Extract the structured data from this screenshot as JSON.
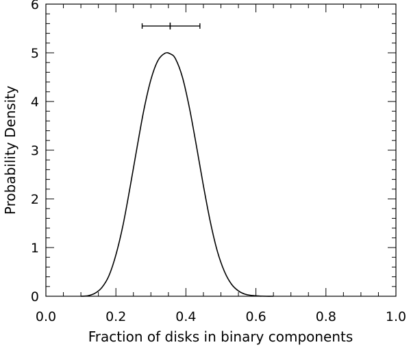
{
  "chart_data": {
    "type": "line",
    "title": "",
    "xlabel": "Fraction of disks in binary components",
    "ylabel": "Probability Density",
    "xlim": [
      0.0,
      1.0
    ],
    "ylim": [
      0,
      6
    ],
    "xticks": [
      "0.0",
      "0.2",
      "0.4",
      "0.6",
      "0.8",
      "1.0"
    ],
    "yticks": [
      "0",
      "1",
      "2",
      "3",
      "4",
      "5",
      "6"
    ],
    "x_minor_step": 0.05,
    "y_minor_step": 0.2,
    "grid": false,
    "series": [
      {
        "x": [
          0.1,
          0.12,
          0.14,
          0.16,
          0.18,
          0.2,
          0.22,
          0.24,
          0.26,
          0.28,
          0.3,
          0.32,
          0.34,
          0.355,
          0.37,
          0.39,
          0.41,
          0.43,
          0.45,
          0.47,
          0.49,
          0.51,
          0.53,
          0.55,
          0.57,
          0.59,
          0.61,
          0.63,
          0.65
        ],
        "y": [
          0.0,
          0.01,
          0.06,
          0.18,
          0.42,
          0.85,
          1.45,
          2.22,
          3.04,
          3.83,
          4.45,
          4.84,
          4.99,
          4.98,
          4.88,
          4.5,
          3.87,
          3.09,
          2.27,
          1.52,
          0.92,
          0.51,
          0.25,
          0.11,
          0.04,
          0.015,
          0.005,
          0.0,
          0.0
        ]
      }
    ],
    "errorbar": {
      "center": 0.355,
      "low": 0.275,
      "high": 0.44,
      "y": 5.55
    }
  }
}
